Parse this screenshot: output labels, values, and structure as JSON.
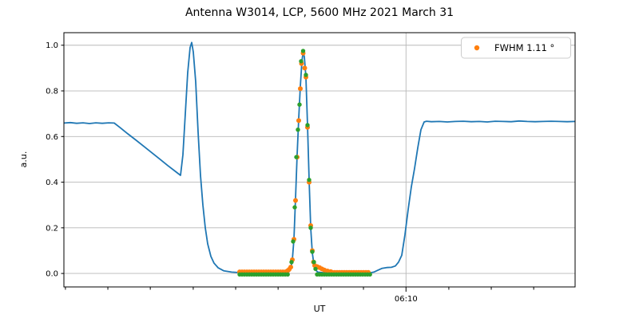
{
  "chart_data": {
    "type": "line",
    "title": "Antenna W3014, LCP, 5600 MHz 2021 March 31",
    "xlabel": "UT",
    "ylabel": "a.u.",
    "grid": true,
    "legend": {
      "label": "FWHM 1.11 °",
      "marker_color": "#ff7f0e",
      "position": "upper right"
    },
    "colors": {
      "scan_line": "#1f77b4",
      "fit_points": "#ff7f0e",
      "data_points": "#2ca02c",
      "grid": "#b8b8b8",
      "frame": "#000000"
    },
    "ylim": [
      -0.059,
      1.055
    ],
    "y_ticks": [
      0.0,
      0.2,
      0.4,
      0.6,
      0.8,
      1.0
    ],
    "x_axis": {
      "unit": "axis-fraction",
      "major_tick": {
        "label": "06:10",
        "x": 0.6692
      },
      "minor_ticks": [
        0.003,
        0.086,
        0.169,
        0.253,
        0.336,
        0.419,
        0.503,
        0.586,
        0.753,
        0.836,
        0.919
      ]
    },
    "series": [
      {
        "name": "drift-scan-line",
        "type": "line",
        "color": "#1f77b4",
        "width": 1.8,
        "points": [
          [
            0.0,
            0.659
          ],
          [
            0.0125,
            0.661
          ],
          [
            0.025,
            0.658
          ],
          [
            0.0375,
            0.66
          ],
          [
            0.05,
            0.657
          ],
          [
            0.0625,
            0.66
          ],
          [
            0.075,
            0.658
          ],
          [
            0.0875,
            0.66
          ],
          [
            0.0984,
            0.659
          ],
          [
            0.1094,
            0.64
          ],
          [
            0.125,
            0.612
          ],
          [
            0.1406,
            0.585
          ],
          [
            0.1563,
            0.557
          ],
          [
            0.1719,
            0.529
          ],
          [
            0.1875,
            0.501
          ],
          [
            0.2031,
            0.473
          ],
          [
            0.2188,
            0.446
          ],
          [
            0.2281,
            0.43
          ],
          [
            0.2328,
            0.52
          ],
          [
            0.2375,
            0.7
          ],
          [
            0.2422,
            0.88
          ],
          [
            0.2469,
            0.99
          ],
          [
            0.25,
            1.012
          ],
          [
            0.2531,
            0.97
          ],
          [
            0.2578,
            0.84
          ],
          [
            0.2625,
            0.62
          ],
          [
            0.2672,
            0.43
          ],
          [
            0.2719,
            0.3
          ],
          [
            0.2766,
            0.2
          ],
          [
            0.2813,
            0.13
          ],
          [
            0.2875,
            0.075
          ],
          [
            0.2938,
            0.045
          ],
          [
            0.3016,
            0.025
          ],
          [
            0.3125,
            0.012
          ],
          [
            0.3281,
            0.006
          ],
          [
            0.3438,
            0.004
          ],
          [
            0.375,
            0.003
          ],
          [
            0.4063,
            0.003
          ],
          [
            0.4297,
            0.004
          ],
          [
            0.4406,
            0.008
          ],
          [
            0.4438,
            0.02
          ],
          [
            0.4469,
            0.06
          ],
          [
            0.45,
            0.15
          ],
          [
            0.4531,
            0.33
          ],
          [
            0.4563,
            0.52
          ],
          [
            0.4594,
            0.68
          ],
          [
            0.4625,
            0.82
          ],
          [
            0.4656,
            0.93
          ],
          [
            0.468,
            0.97
          ],
          [
            0.4703,
            0.95
          ],
          [
            0.4734,
            0.86
          ],
          [
            0.4766,
            0.65
          ],
          [
            0.4797,
            0.41
          ],
          [
            0.4828,
            0.2
          ],
          [
            0.4859,
            0.09
          ],
          [
            0.4891,
            0.04
          ],
          [
            0.4922,
            0.015
          ],
          [
            0.4969,
            0.006
          ],
          [
            0.5078,
            0.003
          ],
          [
            0.5313,
            0.002
          ],
          [
            0.5625,
            0.002
          ],
          [
            0.5859,
            0.002
          ],
          [
            0.5969,
            0.002
          ],
          [
            0.6063,
            0.006
          ],
          [
            0.6141,
            0.014
          ],
          [
            0.6219,
            0.022
          ],
          [
            0.6313,
            0.026
          ],
          [
            0.6406,
            0.027
          ],
          [
            0.6484,
            0.033
          ],
          [
            0.6547,
            0.05
          ],
          [
            0.6609,
            0.08
          ],
          [
            0.6672,
            0.17
          ],
          [
            0.6734,
            0.28
          ],
          [
            0.6797,
            0.38
          ],
          [
            0.6859,
            0.46
          ],
          [
            0.6922,
            0.55
          ],
          [
            0.6984,
            0.63
          ],
          [
            0.7047,
            0.664
          ],
          [
            0.7094,
            0.667
          ],
          [
            0.7188,
            0.665
          ],
          [
            0.7344,
            0.666
          ],
          [
            0.75,
            0.664
          ],
          [
            0.7656,
            0.666
          ],
          [
            0.7813,
            0.667
          ],
          [
            0.7969,
            0.665
          ],
          [
            0.8125,
            0.666
          ],
          [
            0.8281,
            0.664
          ],
          [
            0.8438,
            0.667
          ],
          [
            0.8594,
            0.666
          ],
          [
            0.875,
            0.665
          ],
          [
            0.8906,
            0.668
          ],
          [
            0.9063,
            0.666
          ],
          [
            0.9219,
            0.665
          ],
          [
            0.9375,
            0.666
          ],
          [
            0.9531,
            0.667
          ],
          [
            0.9688,
            0.666
          ],
          [
            0.9844,
            0.665
          ],
          [
            1.0,
            0.666
          ]
        ]
      },
      {
        "name": "gaussian-fit-scatter",
        "type": "scatter",
        "color": "#ff7f0e",
        "marker_r": 3,
        "runs": [
          {
            "x0": 0.3438,
            "x1": 0.4344,
            "step": 0.0047,
            "y": 0.007
          },
          {
            "x0": 0.525,
            "x1": 0.5969,
            "step": 0.0047,
            "y": 0.005
          }
        ],
        "points": [
          [
            0.4375,
            0.012
          ],
          [
            0.4406,
            0.018
          ],
          [
            0.4438,
            0.028
          ],
          [
            0.4469,
            0.06
          ],
          [
            0.45,
            0.15
          ],
          [
            0.4531,
            0.32
          ],
          [
            0.4563,
            0.51
          ],
          [
            0.4594,
            0.67
          ],
          [
            0.4625,
            0.81
          ],
          [
            0.4648,
            0.92
          ],
          [
            0.468,
            0.965
          ],
          [
            0.4711,
            0.9
          ],
          [
            0.4734,
            0.86
          ],
          [
            0.4766,
            0.64
          ],
          [
            0.4797,
            0.4
          ],
          [
            0.4828,
            0.21
          ],
          [
            0.4859,
            0.1
          ],
          [
            0.4883,
            0.05
          ],
          [
            0.4906,
            0.035
          ],
          [
            0.4953,
            0.03
          ],
          [
            0.5,
            0.026
          ],
          [
            0.5047,
            0.02
          ],
          [
            0.5094,
            0.015
          ],
          [
            0.5156,
            0.011
          ],
          [
            0.5219,
            0.008
          ]
        ]
      },
      {
        "name": "measured-data-scatter",
        "type": "scatter",
        "color": "#2ca02c",
        "marker_r": 2.7,
        "runs": [
          {
            "x0": 0.3438,
            "x1": 0.4406,
            "step": 0.0047,
            "y": -0.004
          },
          {
            "x0": 0.4953,
            "x1": 0.6016,
            "step": 0.0047,
            "y": -0.004
          }
        ],
        "points": [
          [
            0.4453,
            0.05
          ],
          [
            0.4484,
            0.14
          ],
          [
            0.4516,
            0.29
          ],
          [
            0.4547,
            0.51
          ],
          [
            0.4578,
            0.63
          ],
          [
            0.4609,
            0.74
          ],
          [
            0.4641,
            0.93
          ],
          [
            0.468,
            0.975
          ],
          [
            0.4734,
            0.87
          ],
          [
            0.4766,
            0.65
          ],
          [
            0.4797,
            0.41
          ],
          [
            0.4828,
            0.2
          ],
          [
            0.4859,
            0.095
          ],
          [
            0.4891,
            0.05
          ],
          [
            0.4922,
            0.02
          ]
        ]
      }
    ]
  }
}
